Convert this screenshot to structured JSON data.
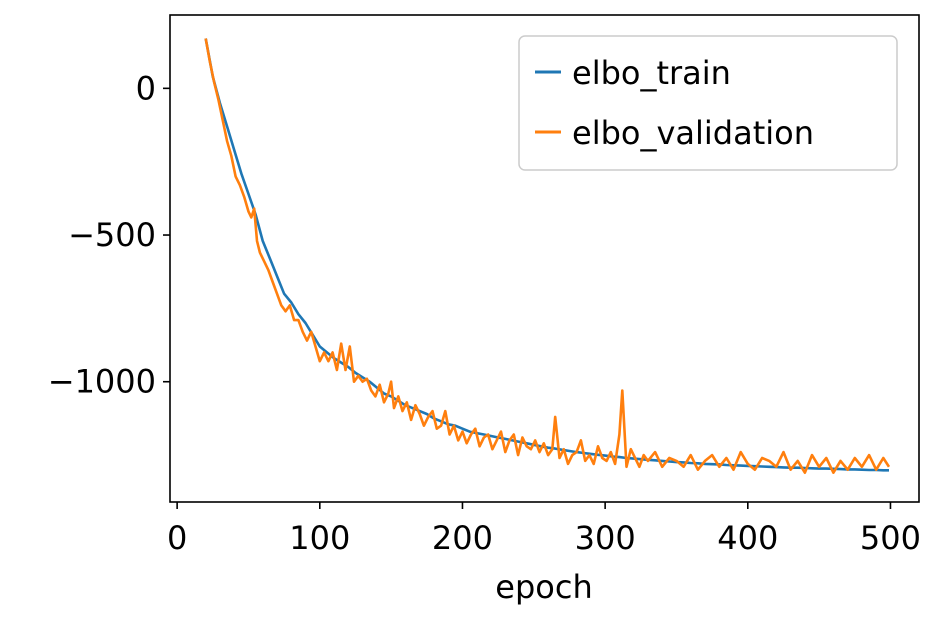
{
  "chart_data": {
    "type": "line",
    "title": "",
    "xlabel": "epoch",
    "ylabel": "",
    "xlim": [
      -5,
      520
    ],
    "ylim": [
      -1410,
      250
    ],
    "xticks": [
      0,
      100,
      200,
      300,
      400,
      500
    ],
    "yticks": [
      0,
      -500,
      -1000
    ],
    "ytick_labels": [
      "0",
      "−500",
      "−1000"
    ],
    "grid": false,
    "legend_position": "top-right",
    "series": [
      {
        "name": "elbo_train",
        "color": "#1f77b4",
        "x": [
          20,
          25,
          30,
          35,
          40,
          45,
          50,
          55,
          60,
          65,
          70,
          75,
          80,
          85,
          90,
          95,
          100,
          105,
          110,
          115,
          120,
          125,
          130,
          135,
          140,
          145,
          150,
          155,
          160,
          165,
          170,
          175,
          180,
          185,
          190,
          195,
          200,
          205,
          210,
          215,
          220,
          225,
          230,
          235,
          240,
          245,
          250,
          255,
          260,
          265,
          270,
          275,
          280,
          285,
          290,
          295,
          300,
          305,
          310,
          315,
          320,
          325,
          330,
          335,
          340,
          345,
          350,
          355,
          360,
          365,
          370,
          375,
          380,
          385,
          390,
          395,
          400,
          405,
          410,
          415,
          420,
          425,
          430,
          435,
          440,
          445,
          450,
          455,
          460,
          465,
          470,
          475,
          480,
          485,
          490,
          495,
          499
        ],
        "y": [
          170,
          40,
          -50,
          -130,
          -210,
          -290,
          -360,
          -430,
          -520,
          -580,
          -640,
          -700,
          -730,
          -770,
          -800,
          -840,
          -880,
          -900,
          -920,
          -935,
          -950,
          -970,
          -985,
          -1000,
          -1020,
          -1040,
          -1050,
          -1065,
          -1080,
          -1090,
          -1100,
          -1110,
          -1125,
          -1135,
          -1145,
          -1150,
          -1160,
          -1170,
          -1175,
          -1180,
          -1185,
          -1190,
          -1195,
          -1200,
          -1205,
          -1210,
          -1215,
          -1220,
          -1225,
          -1228,
          -1232,
          -1236,
          -1240,
          -1243,
          -1246,
          -1249,
          -1252,
          -1255,
          -1257,
          -1260,
          -1262,
          -1264,
          -1266,
          -1268,
          -1270,
          -1272,
          -1274,
          -1275,
          -1277,
          -1278,
          -1280,
          -1281,
          -1282,
          -1284,
          -1285,
          -1286,
          -1287,
          -1288,
          -1289,
          -1290,
          -1291,
          -1292,
          -1293,
          -1293,
          -1294,
          -1295,
          -1296,
          -1296,
          -1297,
          -1298,
          -1299,
          -1299,
          -1300,
          -1301,
          -1301,
          -1302,
          -1302
        ]
      },
      {
        "name": "elbo_validation",
        "color": "#ff7f0e",
        "x": [
          20,
          23,
          26,
          29,
          32,
          35,
          38,
          41,
          44,
          47,
          50,
          52,
          54,
          56,
          58,
          61,
          64,
          67,
          70,
          73,
          76,
          79,
          82,
          85,
          88,
          91,
          94,
          97,
          100,
          103,
          106,
          109,
          112,
          115,
          118,
          121,
          124,
          127,
          130,
          133,
          136,
          139,
          142,
          145,
          148,
          150,
          152,
          155,
          158,
          161,
          164,
          167,
          170,
          173,
          176,
          179,
          182,
          185,
          188,
          191,
          194,
          197,
          200,
          203,
          206,
          209,
          212,
          215,
          218,
          221,
          224,
          227,
          230,
          233,
          236,
          239,
          242,
          245,
          248,
          251,
          254,
          257,
          260,
          263,
          265,
          268,
          271,
          274,
          277,
          280,
          283,
          286,
          289,
          292,
          295,
          298,
          301,
          304,
          307,
          310,
          312,
          315,
          318,
          321,
          324,
          327,
          330,
          335,
          340,
          345,
          350,
          355,
          360,
          365,
          370,
          375,
          380,
          385,
          390,
          395,
          400,
          405,
          410,
          415,
          420,
          425,
          430,
          435,
          440,
          445,
          450,
          455,
          460,
          465,
          470,
          475,
          480,
          485,
          490,
          495,
          499
        ],
        "y": [
          170,
          90,
          20,
          -40,
          -110,
          -180,
          -230,
          -300,
          -330,
          -370,
          -420,
          -440,
          -410,
          -520,
          -560,
          -590,
          -620,
          -660,
          -700,
          -740,
          -760,
          -740,
          -790,
          -790,
          -830,
          -860,
          -830,
          -880,
          -930,
          -900,
          -930,
          -900,
          -960,
          -870,
          -960,
          -880,
          -1000,
          -980,
          -1000,
          -990,
          -1030,
          -1050,
          -1010,
          -1070,
          -1040,
          -1000,
          -1090,
          -1050,
          -1100,
          -1070,
          -1130,
          -1080,
          -1110,
          -1150,
          -1120,
          -1100,
          -1160,
          -1150,
          -1100,
          -1180,
          -1150,
          -1200,
          -1170,
          -1210,
          -1180,
          -1160,
          -1220,
          -1190,
          -1180,
          -1230,
          -1200,
          -1170,
          -1240,
          -1200,
          -1180,
          -1250,
          -1190,
          -1220,
          -1230,
          -1200,
          -1240,
          -1210,
          -1250,
          -1230,
          -1120,
          -1260,
          -1230,
          -1280,
          -1250,
          -1240,
          -1200,
          -1270,
          -1250,
          -1280,
          -1220,
          -1260,
          -1270,
          -1240,
          -1280,
          -1180,
          -1030,
          -1290,
          -1230,
          -1260,
          -1290,
          -1250,
          -1270,
          -1240,
          -1290,
          -1260,
          -1270,
          -1290,
          -1250,
          -1300,
          -1270,
          -1250,
          -1290,
          -1260,
          -1300,
          -1240,
          -1280,
          -1300,
          -1260,
          -1270,
          -1290,
          -1240,
          -1300,
          -1270,
          -1310,
          -1250,
          -1290,
          -1260,
          -1310,
          -1270,
          -1300,
          -1260,
          -1290,
          -1250,
          -1300,
          -1260,
          -1290
        ]
      }
    ]
  }
}
